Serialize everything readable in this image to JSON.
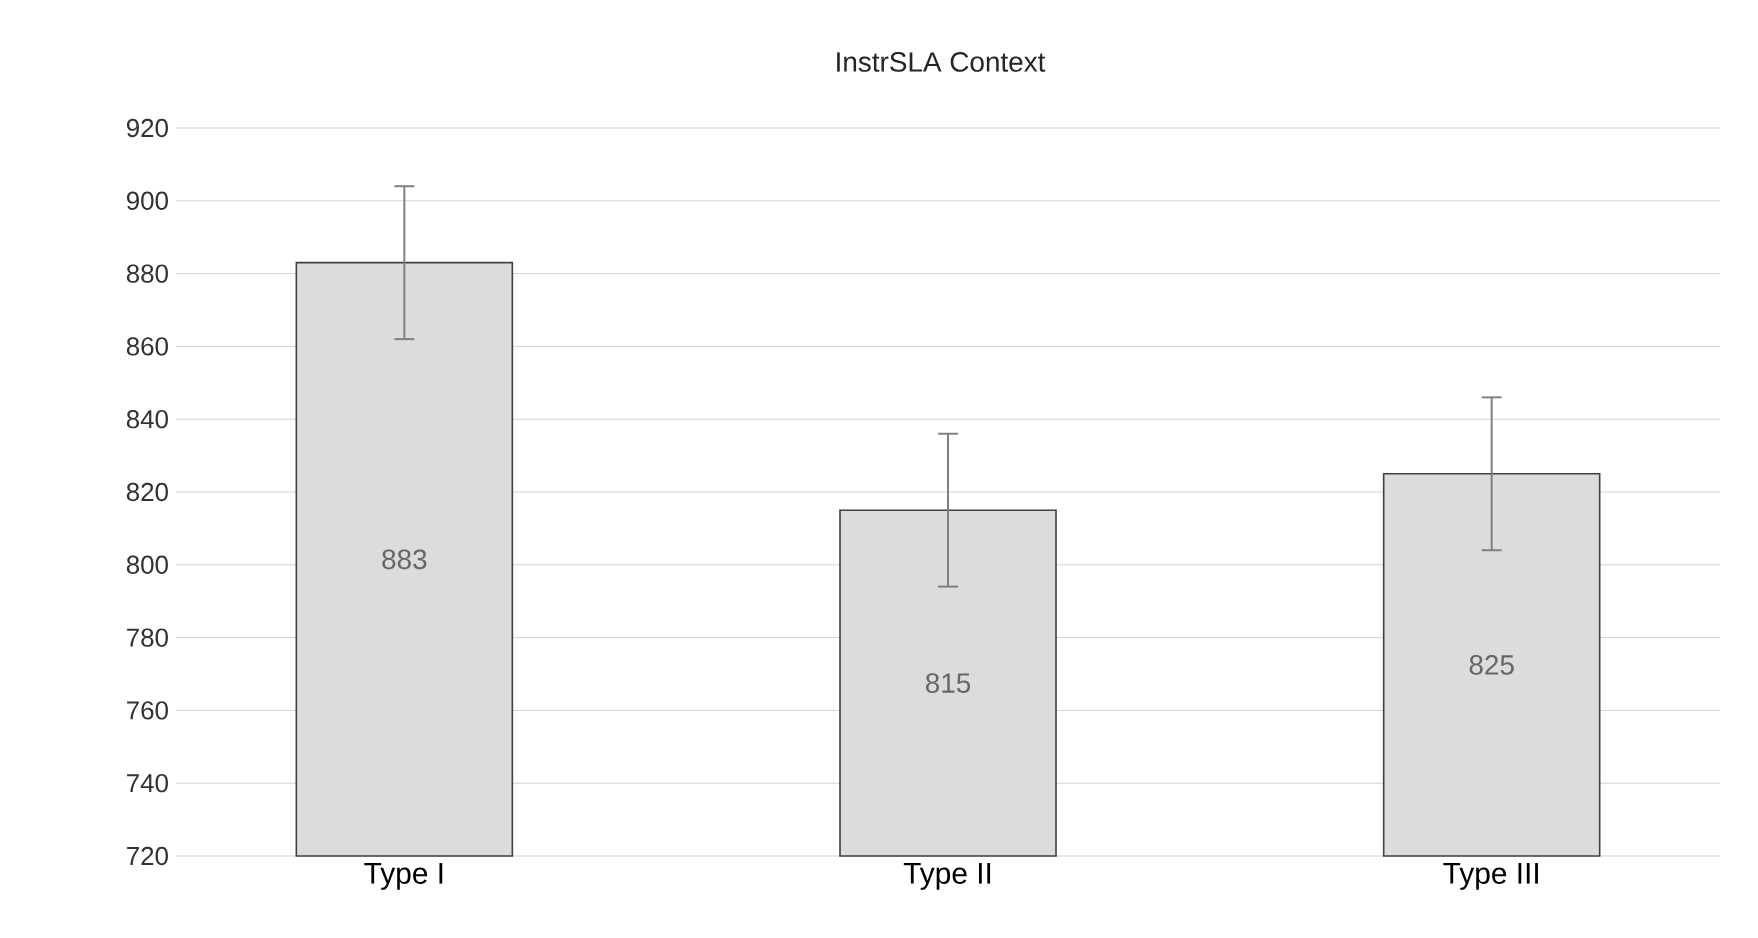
{
  "chart_data": {
    "type": "bar",
    "title": "InstrSLA Context",
    "categories": [
      "Type I",
      "Type II",
      "Type III"
    ],
    "values": [
      883,
      815,
      825
    ],
    "errors": [
      21,
      21,
      21
    ],
    "color": "#dcdcdc",
    "ylim": [
      720,
      920
    ],
    "yticks": [
      720,
      740,
      760,
      780,
      800,
      820,
      840,
      860,
      880,
      900,
      920
    ],
    "grid": "y",
    "data_labels": true
  }
}
